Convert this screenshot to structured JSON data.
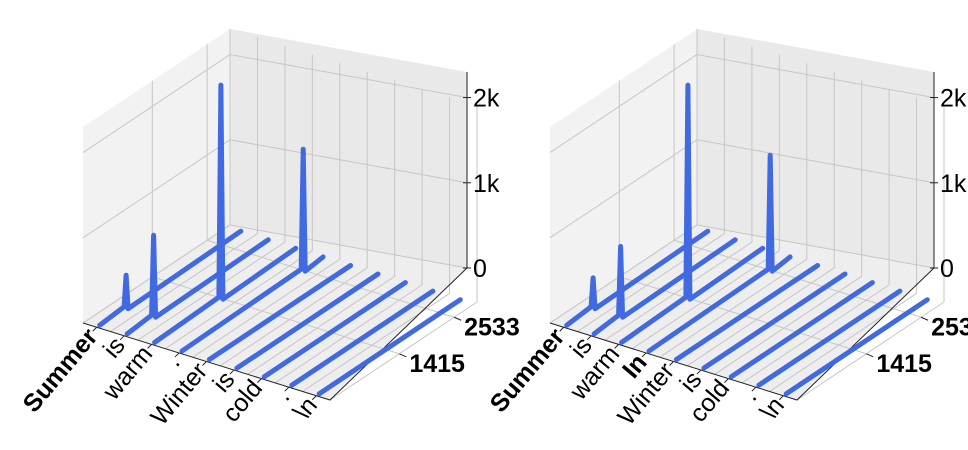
{
  "colors": {
    "series": "#4169E1",
    "pane_left": "#f2f2f2",
    "pane_back": "#e9e9e9",
    "pane_floor": "#eeeeee",
    "grid": "#c6c6c6"
  },
  "chart_data": [
    {
      "type": "3d-line",
      "panel": "left",
      "x_tick_labels": [
        "Summer",
        "is",
        "warm",
        ".",
        "Winter",
        "is",
        "cold",
        ".",
        "\\n"
      ],
      "bold_x_ticks": [
        0
      ],
      "y_tick_labels": [
        "1415",
        "2533"
      ],
      "y_ticks": [
        1415,
        2533
      ],
      "z_tick_labels": [
        "0",
        "1k",
        "2k"
      ],
      "z_ticks": [
        0,
        1000,
        2000
      ],
      "zlim": [
        0,
        2300
      ],
      "grid": true,
      "baseline_value": 0,
      "spikes": [
        {
          "token_index": 0,
          "y": 600,
          "value": 380
        },
        {
          "token_index": 1,
          "y": 600,
          "value": 950
        },
        {
          "token_index": 2,
          "y": 1415,
          "value": 2500
        },
        {
          "token_index": 3,
          "y": 2533,
          "value": 1420
        }
      ]
    },
    {
      "type": "3d-line",
      "panel": "right",
      "x_tick_labels": [
        "Summer",
        "is",
        "warm",
        "In",
        "Winter",
        "is",
        "cold",
        ".",
        "\\n"
      ],
      "bold_x_ticks": [
        0,
        3
      ],
      "y_tick_labels": [
        "1415",
        "2533"
      ],
      "y_ticks": [
        1415,
        2533
      ],
      "z_tick_labels": [
        "0",
        "1k",
        "2k"
      ],
      "z_ticks": [
        0,
        1000,
        2000
      ],
      "zlim": [
        0,
        2300
      ],
      "grid": true,
      "baseline_value": 0,
      "spikes": [
        {
          "token_index": 0,
          "y": 600,
          "value": 350
        },
        {
          "token_index": 1,
          "y": 600,
          "value": 820
        },
        {
          "token_index": 2,
          "y": 1415,
          "value": 2500
        },
        {
          "token_index": 3,
          "y": 2533,
          "value": 1350
        }
      ]
    }
  ]
}
